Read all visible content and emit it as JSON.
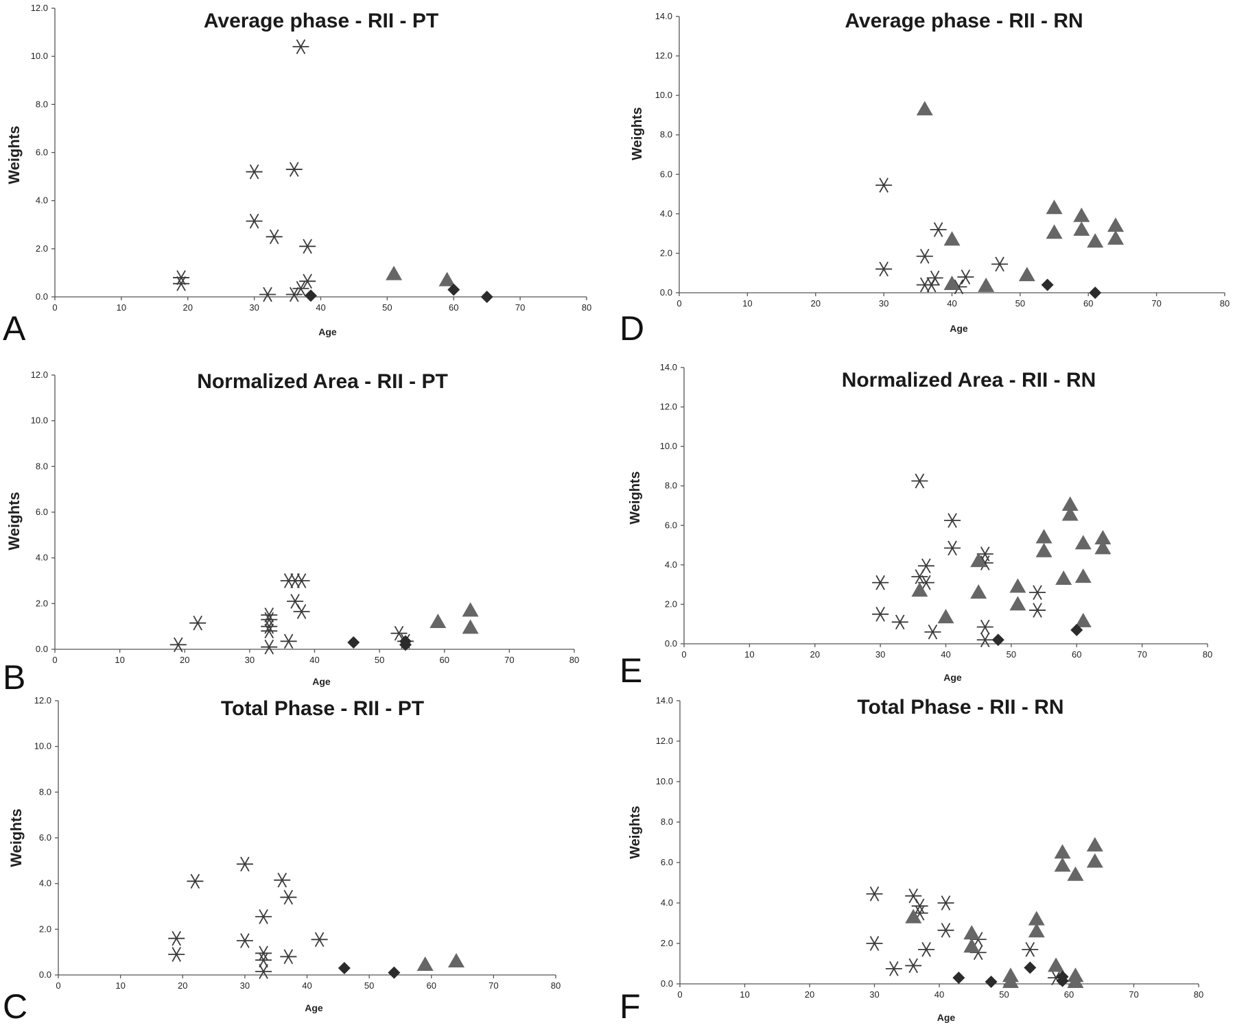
{
  "colors": {
    "star": "#3a3a3a",
    "triangle": "#666666",
    "diamond": "#2b2b2b",
    "axis": "#555555",
    "text": "#222222"
  },
  "chart_data": [
    {
      "panel": "A",
      "type": "scatter",
      "title": "Average phase - RII - PT",
      "xlabel": "Age",
      "ylabel": "Weights",
      "xlim": [
        0,
        80
      ],
      "ylim": [
        0,
        12
      ],
      "xticks": [
        "0",
        "10",
        "20",
        "30",
        "40",
        "50",
        "60",
        "70",
        "80"
      ],
      "yticks": [
        "0.0",
        "2.0",
        "4.0",
        "6.0",
        "8.0",
        "10.0",
        "12.0"
      ],
      "grid": false,
      "series": [
        {
          "marker": "star",
          "points": [
            [
              19,
              0.8
            ],
            [
              19,
              0.55
            ],
            [
              30,
              5.2
            ],
            [
              30,
              3.15
            ],
            [
              32,
              0.1
            ],
            [
              33,
              2.5
            ],
            [
              36,
              5.3
            ],
            [
              36,
              0.1
            ],
            [
              37,
              10.4
            ],
            [
              37,
              0.35
            ],
            [
              38,
              2.1
            ],
            [
              38,
              0.65
            ]
          ]
        },
        {
          "marker": "triangle",
          "points": [
            [
              51,
              0.95
            ],
            [
              59,
              0.7
            ]
          ]
        },
        {
          "marker": "diamond",
          "points": [
            [
              38.5,
              0.05
            ],
            [
              60,
              0.3
            ],
            [
              65,
              0.0
            ]
          ]
        }
      ]
    },
    {
      "panel": "B",
      "type": "scatter",
      "title": "Normalized Area - RII - PT",
      "xlabel": "Age",
      "ylabel": "Weights",
      "xlim": [
        0,
        80
      ],
      "ylim": [
        0,
        12
      ],
      "xticks": [
        "0",
        "10",
        "20",
        "30",
        "40",
        "50",
        "60",
        "70",
        "80"
      ],
      "yticks": [
        "0.0",
        "2.0",
        "4.0",
        "6.0",
        "8.0",
        "10.0",
        "12.0"
      ],
      "grid": false,
      "series": [
        {
          "marker": "star",
          "points": [
            [
              19,
              0.2
            ],
            [
              22,
              1.15
            ],
            [
              33,
              1.5
            ],
            [
              33,
              1.3
            ],
            [
              33,
              1.0
            ],
            [
              33,
              0.8
            ],
            [
              33,
              0.1
            ],
            [
              36,
              3.0
            ],
            [
              36,
              0.35
            ],
            [
              37,
              3.0
            ],
            [
              37,
              2.1
            ],
            [
              38,
              3.0
            ],
            [
              38,
              1.65
            ],
            [
              53,
              0.7
            ],
            [
              54,
              0.35
            ]
          ]
        },
        {
          "marker": "triangle",
          "points": [
            [
              59,
              1.2
            ],
            [
              64,
              1.7
            ],
            [
              64,
              0.95
            ]
          ]
        },
        {
          "marker": "diamond",
          "points": [
            [
              46,
              0.3
            ],
            [
              54,
              0.35
            ],
            [
              54,
              0.2
            ]
          ]
        }
      ]
    },
    {
      "panel": "C",
      "type": "scatter",
      "title": "Total Phase - RII - PT",
      "xlabel": "Age",
      "ylabel": "Weights",
      "xlim": [
        0,
        80
      ],
      "ylim": [
        0,
        12
      ],
      "xticks": [
        "0",
        "10",
        "20",
        "30",
        "40",
        "50",
        "60",
        "70",
        "80"
      ],
      "yticks": [
        "0.0",
        "2.0",
        "4.0",
        "6.0",
        "8.0",
        "10.0",
        "12.0"
      ],
      "grid": false,
      "series": [
        {
          "marker": "star",
          "points": [
            [
              19,
              1.6
            ],
            [
              19,
              0.9
            ],
            [
              22,
              4.1
            ],
            [
              30,
              4.85
            ],
            [
              30,
              1.5
            ],
            [
              33,
              2.55
            ],
            [
              33,
              0.95
            ],
            [
              33,
              0.65
            ],
            [
              33,
              0.15
            ],
            [
              36,
              4.15
            ],
            [
              37,
              3.4
            ],
            [
              37,
              0.8
            ],
            [
              42,
              1.55
            ]
          ]
        },
        {
          "marker": "triangle",
          "points": [
            [
              59,
              0.45
            ],
            [
              64,
              0.6
            ]
          ]
        },
        {
          "marker": "diamond",
          "points": [
            [
              46,
              0.3
            ],
            [
              54,
              0.1
            ]
          ]
        }
      ]
    },
    {
      "panel": "D",
      "type": "scatter",
      "title": "Average phase - RII - RN",
      "xlabel": "Age",
      "ylabel": "Weights",
      "xlim": [
        0,
        80
      ],
      "ylim": [
        0,
        14
      ],
      "xticks": [
        "0",
        "10",
        "20",
        "30",
        "40",
        "50",
        "60",
        "70",
        "80"
      ],
      "yticks": [
        "0.0",
        "2.0",
        "4.0",
        "6.0",
        "8.0",
        "10.0",
        "12.0",
        "14.0"
      ],
      "grid": false,
      "series": [
        {
          "marker": "star",
          "points": [
            [
              30,
              5.45
            ],
            [
              30,
              1.2
            ],
            [
              36,
              1.85
            ],
            [
              36,
              0.4
            ],
            [
              37,
              0.4
            ],
            [
              37.5,
              0.75
            ],
            [
              38,
              3.2
            ],
            [
              41,
              0.3
            ],
            [
              42,
              0.8
            ],
            [
              47,
              1.45
            ]
          ]
        },
        {
          "marker": "triangle",
          "points": [
            [
              36,
              9.3
            ],
            [
              40,
              2.7
            ],
            [
              40,
              0.45
            ],
            [
              45,
              0.35
            ],
            [
              51,
              0.9
            ],
            [
              55,
              4.3
            ],
            [
              55,
              3.05
            ],
            [
              59,
              3.9
            ],
            [
              59,
              3.2
            ],
            [
              61,
              2.6
            ],
            [
              64,
              3.4
            ],
            [
              64,
              2.75
            ]
          ]
        },
        {
          "marker": "diamond",
          "points": [
            [
              54,
              0.4
            ],
            [
              61,
              0.0
            ]
          ]
        }
      ]
    },
    {
      "panel": "E",
      "type": "scatter",
      "title": "Normalized Area - RII - RN",
      "xlabel": "Age",
      "ylabel": "Weights",
      "xlim": [
        0,
        80
      ],
      "ylim": [
        0,
        14
      ],
      "xticks": [
        "0",
        "10",
        "20",
        "30",
        "40",
        "50",
        "60",
        "70",
        "80"
      ],
      "yticks": [
        "0.0",
        "2.0",
        "4.0",
        "6.0",
        "8.0",
        "10.0",
        "12.0",
        "14.0"
      ],
      "grid": false,
      "series": [
        {
          "marker": "star",
          "points": [
            [
              30,
              3.1
            ],
            [
              30,
              1.5
            ],
            [
              33,
              1.1
            ],
            [
              36,
              8.25
            ],
            [
              36,
              3.4
            ],
            [
              37,
              3.95
            ],
            [
              37,
              3.1
            ],
            [
              38,
              0.6
            ],
            [
              41,
              6.25
            ],
            [
              41,
              4.85
            ],
            [
              46,
              4.55
            ],
            [
              46,
              4.1
            ],
            [
              46,
              0.85
            ],
            [
              46,
              0.2
            ],
            [
              54,
              2.6
            ],
            [
              54,
              1.7
            ]
          ]
        },
        {
          "marker": "triangle",
          "points": [
            [
              36,
              2.7
            ],
            [
              40,
              1.35
            ],
            [
              45,
              4.2
            ],
            [
              45,
              2.6
            ],
            [
              51,
              2.9
            ],
            [
              51,
              2.0
            ],
            [
              55,
              5.4
            ],
            [
              55,
              4.7
            ],
            [
              58,
              3.3
            ],
            [
              59,
              7.05
            ],
            [
              59,
              6.55
            ],
            [
              61,
              5.1
            ],
            [
              61,
              3.4
            ],
            [
              61,
              1.15
            ],
            [
              64,
              5.35
            ],
            [
              64,
              4.85
            ]
          ]
        },
        {
          "marker": "diamond",
          "points": [
            [
              48,
              0.2
            ],
            [
              60,
              0.7
            ]
          ]
        }
      ]
    },
    {
      "panel": "F",
      "type": "scatter",
      "title": "Total Phase - RII - RN",
      "xlabel": "Age",
      "ylabel": "Weights",
      "xlim": [
        0,
        80
      ],
      "ylim": [
        0,
        14
      ],
      "xticks": [
        "0",
        "10",
        "20",
        "30",
        "40",
        "50",
        "60",
        "70",
        "80"
      ],
      "yticks": [
        "0.0",
        "2.0",
        "4.0",
        "6.0",
        "8.0",
        "10.0",
        "12.0",
        "14.0"
      ],
      "grid": false,
      "series": [
        {
          "marker": "star",
          "points": [
            [
              30,
              4.45
            ],
            [
              30,
              2.0
            ],
            [
              33,
              0.75
            ],
            [
              36,
              4.35
            ],
            [
              36,
              0.9
            ],
            [
              37,
              3.85
            ],
            [
              37,
              3.5
            ],
            [
              38,
              1.7
            ],
            [
              41,
              4.0
            ],
            [
              41,
              2.65
            ],
            [
              46,
              2.2
            ],
            [
              46,
              1.55
            ],
            [
              54,
              1.7
            ],
            [
              58,
              0.3
            ]
          ]
        },
        {
          "marker": "triangle",
          "points": [
            [
              36,
              3.3
            ],
            [
              45,
              2.5
            ],
            [
              45,
              1.85
            ],
            [
              51,
              0.4
            ],
            [
              51,
              0.1
            ],
            [
              55,
              3.2
            ],
            [
              55,
              2.6
            ],
            [
              58,
              0.9
            ],
            [
              59,
              6.5
            ],
            [
              59,
              5.85
            ],
            [
              61,
              5.4
            ],
            [
              61,
              0.4
            ],
            [
              61,
              0.1
            ],
            [
              64,
              6.85
            ],
            [
              64,
              6.05
            ]
          ]
        },
        {
          "marker": "diamond",
          "points": [
            [
              43,
              0.3
            ],
            [
              48,
              0.1
            ],
            [
              54,
              0.8
            ],
            [
              59,
              0.35
            ],
            [
              59,
              0.15
            ]
          ]
        }
      ]
    }
  ]
}
